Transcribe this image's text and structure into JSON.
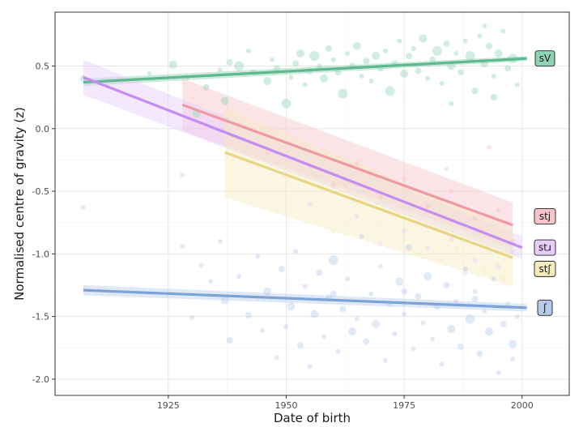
{
  "chart_data": {
    "type": "scatter",
    "xlabel": "Date of birth",
    "ylabel": "Normalised centre of gravity (z)",
    "xlim": [
      1901,
      2010
    ],
    "ylim": [
      -2.13,
      0.93
    ],
    "x_ticks": [
      1925,
      1950,
      1975,
      2000
    ],
    "y_ticks": [
      -2.0,
      -1.5,
      -1.0,
      -0.5,
      0.0,
      0.5
    ],
    "x_tick_labels": [
      "1925",
      "1950",
      "1975",
      "2000"
    ],
    "y_tick_labels": [
      "-2.0",
      "-1.5",
      "-1.0",
      "-0.5",
      "0.0",
      "0.5"
    ],
    "grid": true,
    "legend": "direct labels at right end of each line",
    "series": [
      {
        "name": "sV",
        "color": "#5fb890",
        "fill": "#8fd3b5",
        "line": {
          "x": [
            1907,
            2001
          ],
          "y": [
            0.37,
            0.56
          ]
        },
        "band": {
          "x": [
            1907,
            2001
          ],
          "upper": [
            0.4,
            0.58
          ],
          "lower": [
            0.34,
            0.54
          ]
        },
        "points": [
          [
            1907,
            0.4,
            4
          ],
          [
            1921,
            0.44,
            3
          ],
          [
            1926,
            0.51,
            5
          ],
          [
            1929,
            0.41,
            3
          ],
          [
            1931,
            0.12,
            5
          ],
          [
            1933,
            0.33,
            4
          ],
          [
            1936,
            0.47,
            3
          ],
          [
            1937,
            0.22,
            5
          ],
          [
            1938,
            0.53,
            4
          ],
          [
            1940,
            0.5,
            6
          ],
          [
            1942,
            0.62,
            3
          ],
          [
            1943,
            0.45,
            4
          ],
          [
            1946,
            0.38,
            5
          ],
          [
            1947,
            0.55,
            3
          ],
          [
            1948,
            0.48,
            4
          ],
          [
            1950,
            0.2,
            6
          ],
          [
            1951,
            0.41,
            3
          ],
          [
            1952,
            0.52,
            4
          ],
          [
            1953,
            0.6,
            5
          ],
          [
            1954,
            0.35,
            3
          ],
          [
            1955,
            0.46,
            4
          ],
          [
            1956,
            0.58,
            6
          ],
          [
            1957,
            0.5,
            3
          ],
          [
            1958,
            0.4,
            5
          ],
          [
            1959,
            0.64,
            4
          ],
          [
            1960,
            0.55,
            3
          ],
          [
            1961,
            0.45,
            4
          ],
          [
            1962,
            0.28,
            6
          ],
          [
            1963,
            0.6,
            3
          ],
          [
            1964,
            0.5,
            4
          ],
          [
            1965,
            0.66,
            5
          ],
          [
            1966,
            0.42,
            3
          ],
          [
            1967,
            0.54,
            4
          ],
          [
            1968,
            0.38,
            3
          ],
          [
            1969,
            0.58,
            5
          ],
          [
            1970,
            0.48,
            4
          ],
          [
            1971,
            0.62,
            3
          ],
          [
            1972,
            0.3,
            6
          ],
          [
            1973,
            0.52,
            4
          ],
          [
            1974,
            0.7,
            3
          ],
          [
            1975,
            0.44,
            5
          ],
          [
            1976,
            0.58,
            4
          ],
          [
            1977,
            0.64,
            3
          ],
          [
            1978,
            0.46,
            4
          ],
          [
            1979,
            0.72,
            5
          ],
          [
            1980,
            0.4,
            3
          ],
          [
            1981,
            0.55,
            4
          ],
          [
            1982,
            0.62,
            6
          ],
          [
            1983,
            0.36,
            3
          ],
          [
            1984,
            0.68,
            4
          ],
          [
            1985,
            0.5,
            5
          ],
          [
            1986,
            0.6,
            3
          ],
          [
            1987,
            0.45,
            4
          ],
          [
            1988,
            0.7,
            3
          ],
          [
            1989,
            0.58,
            6
          ],
          [
            1990,
            0.3,
            4
          ],
          [
            1991,
            0.74,
            3
          ],
          [
            1992,
            0.52,
            5
          ],
          [
            1993,
            0.66,
            4
          ],
          [
            1994,
            0.42,
            3
          ],
          [
            1995,
            0.6,
            5
          ],
          [
            1996,
            0.78,
            3
          ],
          [
            1997,
            0.48,
            4
          ],
          [
            1998,
            0.56,
            6
          ],
          [
            1999,
            0.35,
            3
          ],
          [
            1992,
            0.82,
            3
          ],
          [
            1985,
            0.2,
            3
          ],
          [
            1994,
            0.25,
            4
          ]
        ]
      },
      {
        "name": "stj",
        "color": "#ef99a3",
        "fill": "#f7c4c9",
        "line": {
          "x": [
            1928,
            1998
          ],
          "y": [
            0.19,
            -0.77
          ]
        },
        "band": {
          "x": [
            1928,
            1998
          ],
          "upper": [
            0.4,
            -0.59
          ],
          "lower": [
            -0.02,
            -0.95
          ]
        },
        "points": [
          [
            1928,
            -0.37,
            3
          ],
          [
            1946,
            -0.2,
            3
          ],
          [
            1955,
            -0.3,
            3
          ],
          [
            1960,
            -0.45,
            3
          ],
          [
            1965,
            -0.28,
            3
          ],
          [
            1970,
            -0.55,
            3
          ],
          [
            1975,
            -0.4,
            3
          ],
          [
            1980,
            -0.62,
            3
          ],
          [
            1985,
            -0.5,
            3
          ],
          [
            1990,
            -0.72,
            3
          ],
          [
            1995,
            -0.65,
            3
          ],
          [
            1998,
            -0.9,
            3
          ],
          [
            1993,
            -0.15,
            3
          ],
          [
            1984,
            -0.32,
            3
          ]
        ]
      },
      {
        "name": "stɹ",
        "color": "#c58cf2",
        "fill": "#e6cdfb",
        "line": {
          "x": [
            1907,
            2000
          ],
          "y": [
            0.41,
            -0.95
          ]
        },
        "band": {
          "x": [
            1907,
            2000
          ],
          "upper": [
            0.55,
            -0.86
          ],
          "lower": [
            0.27,
            -1.04
          ]
        },
        "points": [
          [
            1955,
            -0.6,
            3
          ],
          [
            1965,
            -0.7,
            3
          ],
          [
            1975,
            -0.82,
            3
          ],
          [
            1980,
            -0.95,
            3
          ],
          [
            1985,
            -0.88,
            3
          ],
          [
            1990,
            -1.05,
            3
          ],
          [
            1995,
            -1.1,
            3
          ],
          [
            1998,
            -0.98,
            3
          ],
          [
            1988,
            -1.15,
            3
          ],
          [
            1970,
            -0.92,
            3
          ]
        ]
      },
      {
        "name": "stʃ",
        "color": "#e8d582",
        "fill": "#f5ecbe",
        "line": {
          "x": [
            1937,
            1998
          ],
          "y": [
            -0.19,
            -1.03
          ]
        },
        "band": {
          "x": [
            1937,
            1998
          ],
          "upper": [
            0.17,
            -0.8
          ],
          "lower": [
            -0.55,
            -1.26
          ]
        },
        "points": [
          [
            1960,
            -0.82,
            3
          ],
          [
            1970,
            -0.78,
            3
          ],
          [
            1978,
            -1.0,
            3
          ],
          [
            1986,
            -0.95,
            3
          ],
          [
            1992,
            -1.12,
            3
          ],
          [
            1996,
            -1.2,
            3
          ],
          [
            1982,
            -0.7,
            3
          ]
        ]
      },
      {
        "name": "ʃ",
        "color": "#7da3d6",
        "fill": "#b5cbea",
        "line": {
          "x": [
            1907,
            2001
          ],
          "y": [
            -1.29,
            -1.43
          ]
        },
        "band": {
          "x": [
            1907,
            2001
          ],
          "upper": [
            -1.25,
            -1.4
          ],
          "lower": [
            -1.33,
            -1.46
          ]
        },
        "points": [
          [
            1907,
            -0.63,
            3
          ],
          [
            1928,
            -0.94,
            3
          ],
          [
            1930,
            -1.51,
            3
          ],
          [
            1932,
            -1.09,
            3
          ],
          [
            1934,
            -1.22,
            3
          ],
          [
            1936,
            -0.9,
            3
          ],
          [
            1937,
            -1.37,
            5
          ],
          [
            1938,
            -1.69,
            4
          ],
          [
            1940,
            -1.18,
            3
          ],
          [
            1942,
            -1.49,
            4
          ],
          [
            1944,
            -1.02,
            3
          ],
          [
            1945,
            -1.61,
            3
          ],
          [
            1946,
            -1.3,
            5
          ],
          [
            1948,
            -1.83,
            3
          ],
          [
            1949,
            -1.12,
            4
          ],
          [
            1950,
            -1.58,
            3
          ],
          [
            1951,
            -1.42,
            5
          ],
          [
            1952,
            -0.98,
            3
          ],
          [
            1953,
            -1.73,
            4
          ],
          [
            1954,
            -1.26,
            3
          ],
          [
            1955,
            -1.9,
            3
          ],
          [
            1956,
            -1.48,
            5
          ],
          [
            1957,
            -1.15,
            4
          ],
          [
            1958,
            -1.66,
            3
          ],
          [
            1959,
            -1.35,
            4
          ],
          [
            1960,
            -1.05,
            6
          ],
          [
            1961,
            -1.78,
            3
          ],
          [
            1962,
            -1.44,
            4
          ],
          [
            1963,
            -1.2,
            3
          ],
          [
            1964,
            -1.62,
            5
          ],
          [
            1965,
            -1.52,
            3
          ],
          [
            1966,
            -0.86,
            3
          ],
          [
            1967,
            -1.7,
            4
          ],
          [
            1968,
            -1.32,
            3
          ],
          [
            1969,
            -1.56,
            5
          ],
          [
            1970,
            -1.1,
            3
          ],
          [
            1971,
            -1.85,
            3
          ],
          [
            1972,
            -1.4,
            4
          ],
          [
            1973,
            -1.64,
            3
          ],
          [
            1974,
            -1.22,
            5
          ],
          [
            1975,
            -1.48,
            3
          ],
          [
            1976,
            -0.95,
            4
          ],
          [
            1977,
            -1.76,
            3
          ],
          [
            1978,
            -1.34,
            4
          ],
          [
            1979,
            -1.55,
            3
          ],
          [
            1980,
            -1.18,
            5
          ],
          [
            1981,
            -1.68,
            3
          ],
          [
            1982,
            -1.42,
            4
          ],
          [
            1983,
            -1.88,
            3
          ],
          [
            1984,
            -1.25,
            4
          ],
          [
            1985,
            -1.6,
            5
          ],
          [
            1986,
            -1.38,
            3
          ],
          [
            1987,
            -1.74,
            4
          ],
          [
            1988,
            -1.12,
            3
          ],
          [
            1989,
            -1.52,
            6
          ],
          [
            1990,
            -1.3,
            3
          ],
          [
            1991,
            -1.8,
            4
          ],
          [
            1992,
            -1.46,
            3
          ],
          [
            1993,
            -1.62,
            5
          ],
          [
            1994,
            -1.2,
            3
          ],
          [
            1995,
            -1.95,
            3
          ],
          [
            1996,
            -1.56,
            4
          ],
          [
            1997,
            -1.4,
            3
          ],
          [
            1998,
            -1.72,
            5
          ],
          [
            1999,
            -1.5,
            3
          ],
          [
            1960,
            -1.32,
            4
          ],
          [
            1975,
            -1.3,
            4
          ],
          [
            1990,
            -1.36,
            4
          ],
          [
            1998,
            -1.84,
            3
          ]
        ]
      }
    ]
  }
}
